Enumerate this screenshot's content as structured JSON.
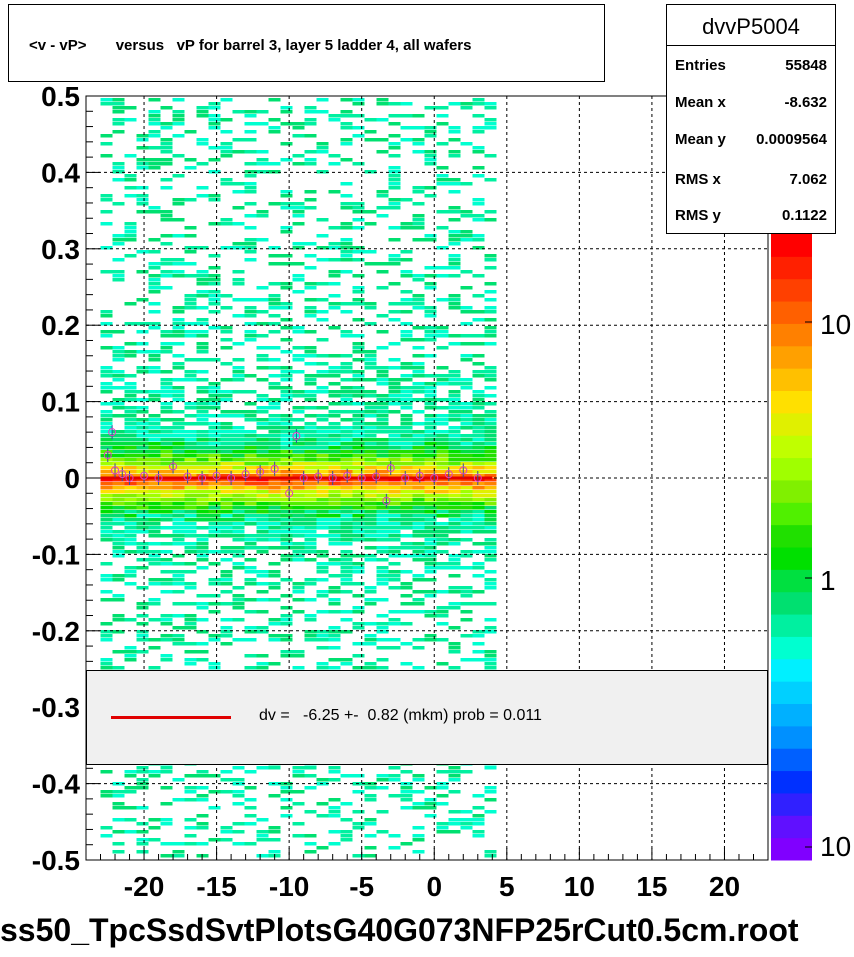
{
  "title": "<v - vP>       versus   vP for barrel 3, layer 5 ladder 4, all wafers",
  "stats": {
    "name": "dvvP5004",
    "rows": [
      {
        "key": "Entries",
        "value": "55848"
      },
      {
        "key": "Mean x",
        "value": "-8.632"
      },
      {
        "key": "Mean y",
        "value": "0.0009564"
      },
      {
        "key": "RMS x",
        "value": "7.062"
      },
      {
        "key": "RMS y",
        "value": "0.1122"
      }
    ]
  },
  "legend": {
    "text": "dv =   -6.25 +-  0.82 (mkm) prob = 0.011",
    "line_color": "#e00000"
  },
  "footer": "ss50_TpcSsdSvtPlotsG40G073NFP25rCut0.5cm.root",
  "colorbar": {
    "labels": [
      "10",
      "1",
      "10"
    ],
    "colors": [
      "#8000ff",
      "#6010ff",
      "#3020ff",
      "#0030ff",
      "#0060ff",
      "#0090ff",
      "#00b0ff",
      "#00d0ff",
      "#00f0ff",
      "#00ffd0",
      "#00f0a0",
      "#00e070",
      "#00e040",
      "#00e000",
      "#20e000",
      "#50f000",
      "#80f000",
      "#a0ff00",
      "#c0ff00",
      "#e0f000",
      "#ffe000",
      "#ffc000",
      "#ffa000",
      "#ff8000",
      "#ff6000",
      "#ff4000",
      "#ff2000",
      "#ff0000"
    ]
  },
  "chart_data": {
    "type": "heatmap",
    "title": "<v - vP>       versus   vP for barrel 3, layer 5 ladder 4, all wafers",
    "xlabel": "",
    "ylabel": "",
    "xlim": [
      -24,
      23
    ],
    "ylim": [
      -0.5,
      0.5
    ],
    "x_ticks": [
      "-20",
      "-15",
      "-10",
      "-5",
      "0",
      "5",
      "10",
      "15",
      "20"
    ],
    "y_ticks": [
      "-0.5",
      "-0.4",
      "-0.3",
      "-0.2",
      "-0.1",
      "0",
      "0.1",
      "0.2",
      "0.3",
      "0.4",
      "0.5"
    ],
    "grid": true,
    "occupied_x_range": [
      -23,
      3.5
    ],
    "fit_line": {
      "x": [
        -23,
        4
      ],
      "y": [
        0,
        0
      ]
    },
    "profile_points": [
      {
        "x": -22.5,
        "y": 0.03
      },
      {
        "x": -22.2,
        "y": 0.06
      },
      {
        "x": -22.0,
        "y": 0.01
      },
      {
        "x": -21.5,
        "y": 0.005
      },
      {
        "x": -21.0,
        "y": 0.0
      },
      {
        "x": -20.0,
        "y": 0.003
      },
      {
        "x": -19.0,
        "y": 0.0
      },
      {
        "x": -18.0,
        "y": 0.015
      },
      {
        "x": -17.0,
        "y": 0.002
      },
      {
        "x": -16.0,
        "y": 0.0
      },
      {
        "x": -15.0,
        "y": 0.003
      },
      {
        "x": -14.0,
        "y": 0.0
      },
      {
        "x": -13.0,
        "y": 0.005
      },
      {
        "x": -12.0,
        "y": 0.008
      },
      {
        "x": -11.0,
        "y": 0.012
      },
      {
        "x": -10.0,
        "y": -0.02
      },
      {
        "x": -9.5,
        "y": 0.055
      },
      {
        "x": -9.0,
        "y": 0.0
      },
      {
        "x": -8.0,
        "y": 0.002
      },
      {
        "x": -7.0,
        "y": 0.0
      },
      {
        "x": -6.0,
        "y": 0.003
      },
      {
        "x": -5.0,
        "y": 0.0
      },
      {
        "x": -4.0,
        "y": 0.002
      },
      {
        "x": -3.3,
        "y": -0.03
      },
      {
        "x": -3.0,
        "y": 0.013
      },
      {
        "x": -2.0,
        "y": 0.0
      },
      {
        "x": -1.0,
        "y": 0.003
      },
      {
        "x": 0.0,
        "y": 0.0
      },
      {
        "x": 1.0,
        "y": 0.005
      },
      {
        "x": 2.0,
        "y": 0.01
      },
      {
        "x": 3.0,
        "y": 0.0
      }
    ],
    "colorbar_scale": "log"
  }
}
